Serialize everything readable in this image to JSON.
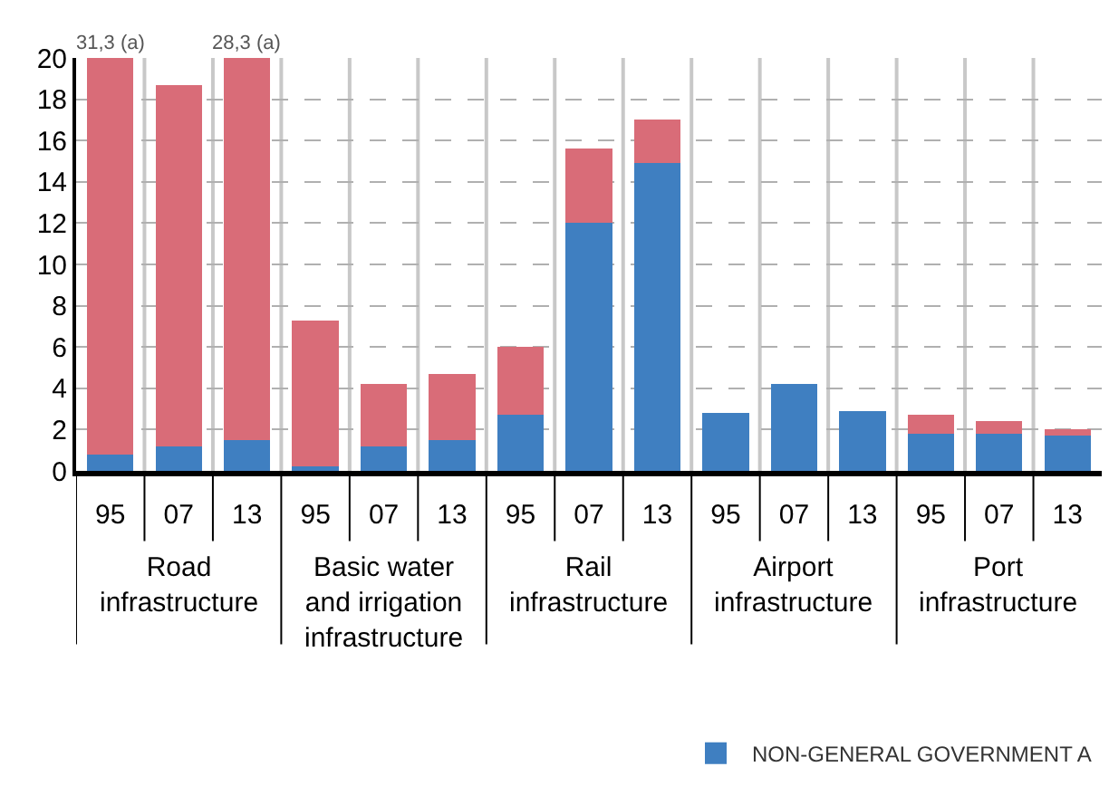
{
  "chart_data": {
    "type": "bar",
    "stacked": true,
    "categories": [
      "95",
      "07",
      "13",
      "95",
      "07",
      "13",
      "95",
      "07",
      "13",
      "95",
      "07",
      "13",
      "95",
      "07",
      "13"
    ],
    "series": [
      {
        "name": "NON-GENERAL GOVERNMENT A",
        "color": "#3f7fc1",
        "values": [
          0.8,
          1.2,
          1.5,
          0.2,
          1.2,
          1.5,
          2.7,
          12.0,
          14.9,
          2.8,
          4.2,
          2.9,
          1.8,
          1.8,
          1.7
        ]
      },
      {
        "color": "#d96c78",
        "values": [
          19.2,
          17.5,
          18.5,
          7.1,
          3.0,
          3.2,
          3.3,
          3.6,
          2.1,
          0,
          0,
          0,
          0.9,
          0.6,
          0.3
        ]
      }
    ],
    "ylim": [
      0,
      20
    ],
    "yticks": [
      0,
      2,
      4,
      6,
      8,
      10,
      12,
      14,
      16,
      18,
      20
    ],
    "grid": true,
    "legend": "bottom right",
    "annotations": [
      "Road infrastructure",
      "Basic water and irrigation infrastructure",
      "Rail infrastructure",
      "Airport infrastructure",
      "Port infrastructure",
      {
        "text": "31,3 (a)",
        "x": "95",
        "y": 20
      },
      {
        "text": "28,3 (a)",
        "x": "13",
        "y": 20
      }
    ]
  }
}
